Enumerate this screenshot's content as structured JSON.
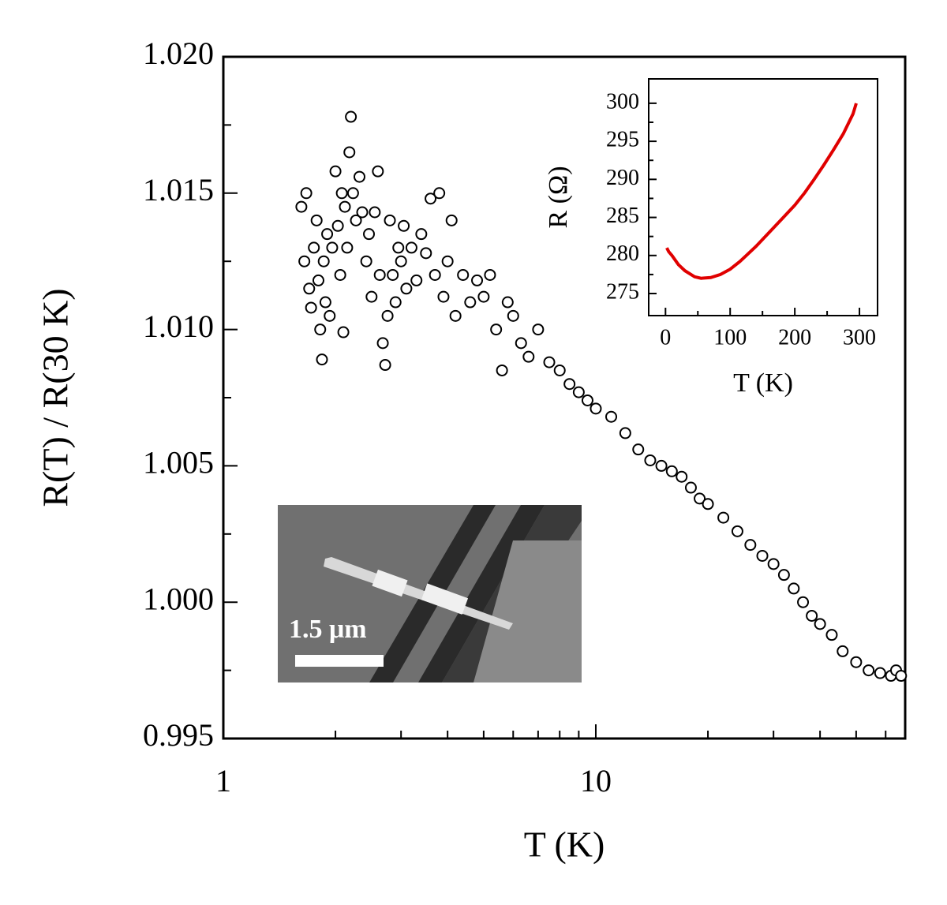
{
  "chart_data": [
    {
      "type": "scatter",
      "xlabel": "T (K)",
      "ylabel": "R(T) / R(30 K)",
      "xscale": "log",
      "xlim": [
        1,
        67.7
      ],
      "xticks": [
        1,
        10
      ],
      "xminorticks": [
        2,
        3,
        4,
        5,
        6,
        7,
        8,
        9,
        20,
        30,
        40,
        50,
        60
      ],
      "ylim": [
        0.995,
        1.02
      ],
      "yticks": [
        {
          "value": 0.995,
          "label": "0.995"
        },
        {
          "value": 1.0,
          "label": "1.000"
        },
        {
          "value": 1.005,
          "label": "1.005"
        },
        {
          "value": 1.01,
          "label": "1.010"
        },
        {
          "value": 1.015,
          "label": "1.015"
        },
        {
          "value": 1.02,
          "label": "1.020"
        }
      ],
      "yminorticks": [
        0.9975,
        1.0025,
        1.0075,
        1.0125,
        1.0175
      ],
      "color": "#000000",
      "x": [
        1.62,
        1.65,
        1.67,
        1.7,
        1.72,
        1.75,
        1.78,
        1.8,
        1.82,
        1.84,
        1.86,
        1.88,
        1.9,
        1.93,
        1.96,
        2.0,
        2.03,
        2.06,
        2.08,
        2.1,
        2.12,
        2.15,
        2.18,
        2.2,
        2.23,
        2.27,
        2.32,
        2.36,
        2.42,
        2.46,
        2.5,
        2.55,
        2.6,
        2.63,
        2.68,
        2.72,
        2.76,
        2.8,
        2.85,
        2.9,
        2.95,
        3.0,
        3.05,
        3.1,
        3.2,
        3.3,
        3.4,
        3.5,
        3.6,
        3.7,
        3.8,
        3.9,
        4.0,
        4.1,
        4.2,
        4.4,
        4.6,
        4.8,
        5.0,
        5.2,
        5.4,
        5.6,
        5.8,
        6.0,
        6.3,
        6.6,
        7.0,
        7.5,
        8.0,
        8.5,
        9.0,
        9.5,
        10,
        11,
        12,
        13,
        14,
        15,
        16,
        17,
        18,
        19,
        20,
        22,
        24,
        26,
        28,
        30,
        32,
        34,
        36,
        38,
        40,
        43,
        46,
        50,
        54,
        58,
        62,
        64,
        66
      ],
      "values": [
        1.0145,
        1.0125,
        1.015,
        1.0115,
        1.0108,
        1.013,
        1.014,
        1.0118,
        1.01,
        1.0089,
        1.0125,
        1.011,
        1.0135,
        1.0105,
        1.013,
        1.0158,
        1.0138,
        1.012,
        1.015,
        1.0099,
        1.0145,
        1.013,
        1.0165,
        1.0178,
        1.015,
        1.014,
        1.0156,
        1.0143,
        1.0125,
        1.0135,
        1.0112,
        1.0143,
        1.0158,
        1.012,
        1.0095,
        1.0087,
        1.0105,
        1.014,
        1.012,
        1.011,
        1.013,
        1.0125,
        1.0138,
        1.0115,
        1.013,
        1.0118,
        1.0135,
        1.0128,
        1.0148,
        1.012,
        1.015,
        1.0112,
        1.0125,
        1.014,
        1.0105,
        1.012,
        1.011,
        1.0118,
        1.0112,
        1.012,
        1.01,
        1.0085,
        1.011,
        1.0105,
        1.0095,
        1.009,
        1.01,
        1.0088,
        1.0085,
        1.008,
        1.0077,
        1.0074,
        1.0071,
        1.0068,
        1.0062,
        1.0056,
        1.0052,
        1.005,
        1.0048,
        1.0046,
        1.0042,
        1.0038,
        1.0036,
        1.0031,
        1.0026,
        1.0021,
        1.0017,
        1.0014,
        1.001,
        1.0005,
        1.0,
        0.9995,
        0.9992,
        0.9988,
        0.9982,
        0.9978,
        0.9975,
        0.9974,
        0.9973,
        0.9975,
        0.9973
      ],
      "annotation": "1.5 μm"
    },
    {
      "type": "line",
      "xlabel": "T (K)",
      "ylabel": "R (Ω)",
      "xlim": [
        -26,
        328
      ],
      "xticks": [
        0,
        100,
        200,
        300
      ],
      "xminorticks": [
        50,
        150,
        250
      ],
      "ylim": [
        272.1,
        303.2
      ],
      "yticks": [
        275,
        280,
        285,
        290,
        295,
        300
      ],
      "yminorticks": [
        277.5,
        282.5,
        287.5,
        292.5,
        297.5
      ],
      "color": "#e00000",
      "x": [
        2,
        5,
        10,
        20,
        30,
        45,
        55,
        70,
        85,
        100,
        115,
        125,
        140,
        160,
        180,
        200,
        215,
        230,
        245,
        260,
        275,
        290,
        295
      ],
      "values": [
        281,
        280.5,
        280,
        278.8,
        278,
        277.2,
        277,
        277.1,
        277.5,
        278.2,
        279.2,
        280,
        281.2,
        283,
        284.8,
        286.6,
        288.2,
        290,
        291.9,
        293.9,
        296,
        298.6,
        300
      ]
    }
  ]
}
